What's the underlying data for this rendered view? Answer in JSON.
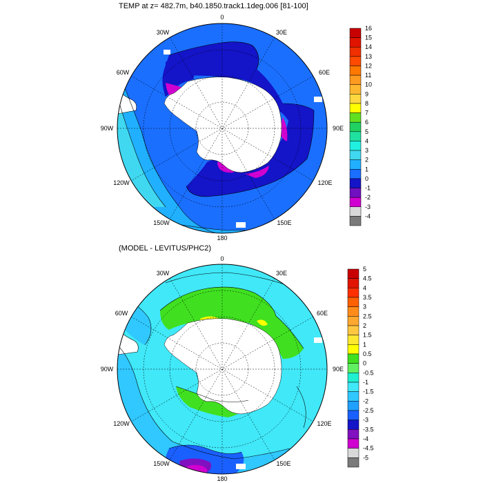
{
  "panels": [
    {
      "title": "TEMP at z= 482.7m, b40.1850.track1.1deg.006 [81-100]",
      "lon_labels": [
        "0",
        "30E",
        "60E",
        "90E",
        "120E",
        "150E",
        "180",
        "150W",
        "120W",
        "90W",
        "60W",
        "30W"
      ],
      "colorbar": {
        "labels": [
          "16",
          "15",
          "14",
          "13",
          "12",
          "11",
          "10",
          "9",
          "8",
          "7",
          "6",
          "5",
          "4",
          "3",
          "2",
          "1",
          "0",
          "-1",
          "-2",
          "-3",
          "-4"
        ],
        "colors": [
          "#c80000",
          "#e01400",
          "#f03000",
          "#ff4a00",
          "#ff7800",
          "#ff9a20",
          "#ffb830",
          "#ffd840",
          "#ffff00",
          "#60e020",
          "#20d060",
          "#20e0a0",
          "#20f0e0",
          "#40d8f0",
          "#20b0ff",
          "#1a6fff",
          "#1414c8",
          "#7010c0",
          "#d000d0",
          "#d8d8d8",
          "#7a7a7a"
        ]
      }
    },
    {
      "title": "(MODEL - LEVITUS/PHC2)",
      "lon_labels": [
        "0",
        "30E",
        "60E",
        "90E",
        "120E",
        "150E",
        "180",
        "150W",
        "120W",
        "90W",
        "60W",
        "30W"
      ],
      "colorbar": {
        "labels": [
          "5",
          "4.5",
          "4",
          "3.5",
          "3",
          "2.5",
          "2",
          "1.5",
          "1",
          "0.5",
          "0",
          "-0.5",
          "-1",
          "-1.5",
          "-2",
          "-2.5",
          "-3",
          "-3.5",
          "-4",
          "-4.5",
          "-5"
        ],
        "colors": [
          "#c80000",
          "#e01400",
          "#ff3000",
          "#ff6000",
          "#ff8c1a",
          "#ffa830",
          "#ffc840",
          "#ffe830",
          "#ffff00",
          "#40e020",
          "#60f060",
          "#20f0d0",
          "#40e8f8",
          "#30c8ff",
          "#20a0ff",
          "#1a60ff",
          "#1414c8",
          "#8010c0",
          "#d000d0",
          "#d8d8d8",
          "#7a7a7a"
        ]
      }
    }
  ],
  "map_colors": {
    "ocean_main": "#1a6fff",
    "ocean_mid": "#20b0ff",
    "ocean_light": "#40d8f0",
    "shelf_dark": "#1414c8",
    "cold": "#d000d0",
    "land": "#ffffff",
    "anom_base": "#40e8f8",
    "anom_mid": "#30c8ff",
    "anom_green": "#40e020",
    "anom_yellow": "#ffff00",
    "anom_purple": "#8010c0"
  }
}
